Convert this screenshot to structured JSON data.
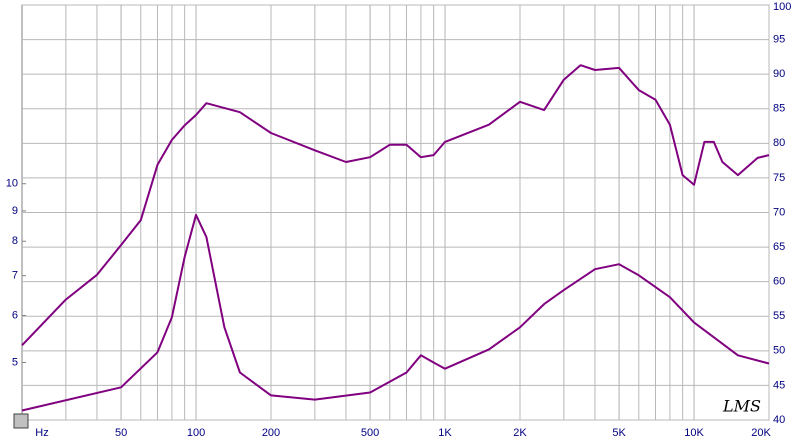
{
  "chart_data": {
    "type": "line",
    "x_unit": "Hz",
    "watermark": "LMS",
    "log_x": true,
    "log_y": true,
    "grid": true,
    "xlim": [
      20,
      20000
    ],
    "xticks": [
      50,
      100,
      200,
      500,
      {
        "value": 1000,
        "label": "1K"
      },
      {
        "value": 2000,
        "label": "2K"
      },
      {
        "value": 5000,
        "label": "5K"
      },
      {
        "value": 10000,
        "label": "10K"
      },
      {
        "value": 20000,
        "label": "20K"
      }
    ],
    "ylim": [
      4,
      20
    ],
    "yticks": [
      5,
      6,
      7,
      8,
      9,
      10
    ],
    "y2lim": [
      40,
      100
    ],
    "y2ticks": [
      40,
      45,
      50,
      55,
      60,
      65,
      70,
      75,
      80,
      85,
      90,
      95,
      100
    ],
    "series": [
      {
        "axis": "y2",
        "color": "#800080",
        "x": [
          20,
          30,
          40,
          50,
          60,
          70,
          80,
          90,
          100,
          110,
          150,
          200,
          300,
          400,
          500,
          600,
          700,
          800,
          900,
          1000,
          1500,
          2000,
          2500,
          3000,
          3500,
          4000,
          5000,
          6000,
          7000,
          8000,
          9000,
          10000,
          11000,
          12000,
          13000,
          15000,
          18000,
          20000
        ],
        "values": [
          50.8,
          57.4,
          61,
          65.3,
          68.9,
          76.9,
          80.5,
          82.6,
          84.1,
          85.8,
          84.5,
          81.5,
          79,
          77.3,
          78,
          79.8,
          79.8,
          78,
          78.3,
          80.2,
          82.7,
          86,
          84.8,
          89.2,
          91.3,
          90.6,
          90.9,
          87.7,
          86.3,
          82.7,
          75.4,
          74,
          80.2,
          80.2,
          77.3,
          75.4,
          77.9,
          78.3
        ]
      },
      {
        "axis": "y",
        "color": "#800080",
        "x": [
          20,
          50,
          70,
          80,
          90,
          100,
          110,
          130,
          150,
          200,
          300,
          500,
          700,
          800,
          900,
          1000,
          1500,
          2000,
          2500,
          3000,
          4000,
          5000,
          6000,
          8000,
          10000,
          15000,
          20000
        ],
        "values": [
          4.15,
          4.54,
          5.2,
          5.96,
          7.52,
          8.86,
          8.13,
          5.73,
          4.81,
          4.4,
          4.33,
          4.45,
          4.81,
          5.14,
          5.0,
          4.88,
          5.26,
          5.73,
          6.27,
          6.62,
          7.18,
          7.32,
          7.01,
          6.44,
          5.84,
          5.14,
          4.98
        ]
      }
    ]
  }
}
